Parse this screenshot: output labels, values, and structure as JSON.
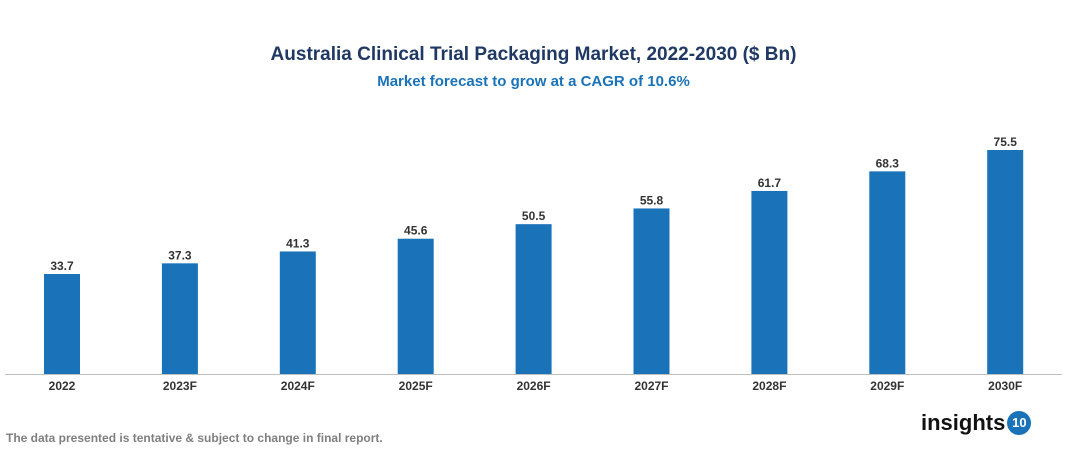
{
  "chart_data": {
    "type": "bar",
    "title": "Australia Clinical Trial Packaging Market, 2022-2030 ($ Bn)",
    "subtitle": "Market forecast to grow at a CAGR of 10.6%",
    "categories": [
      "2022",
      "2023F",
      "2024F",
      "2025F",
      "2026F",
      "2027F",
      "2028F",
      "2029F",
      "2030F"
    ],
    "values": [
      33.7,
      37.3,
      41.3,
      45.6,
      50.5,
      55.8,
      61.7,
      68.3,
      75.5
    ],
    "xlabel": "",
    "ylabel": "",
    "ylim": [
      0,
      80
    ],
    "grid": false,
    "legend": "none",
    "bar_color": "#1a73b9"
  },
  "footer": {
    "note": "The data presented is tentative & subject to change in final report.",
    "logo_text": "insights",
    "logo_badge": "10"
  }
}
